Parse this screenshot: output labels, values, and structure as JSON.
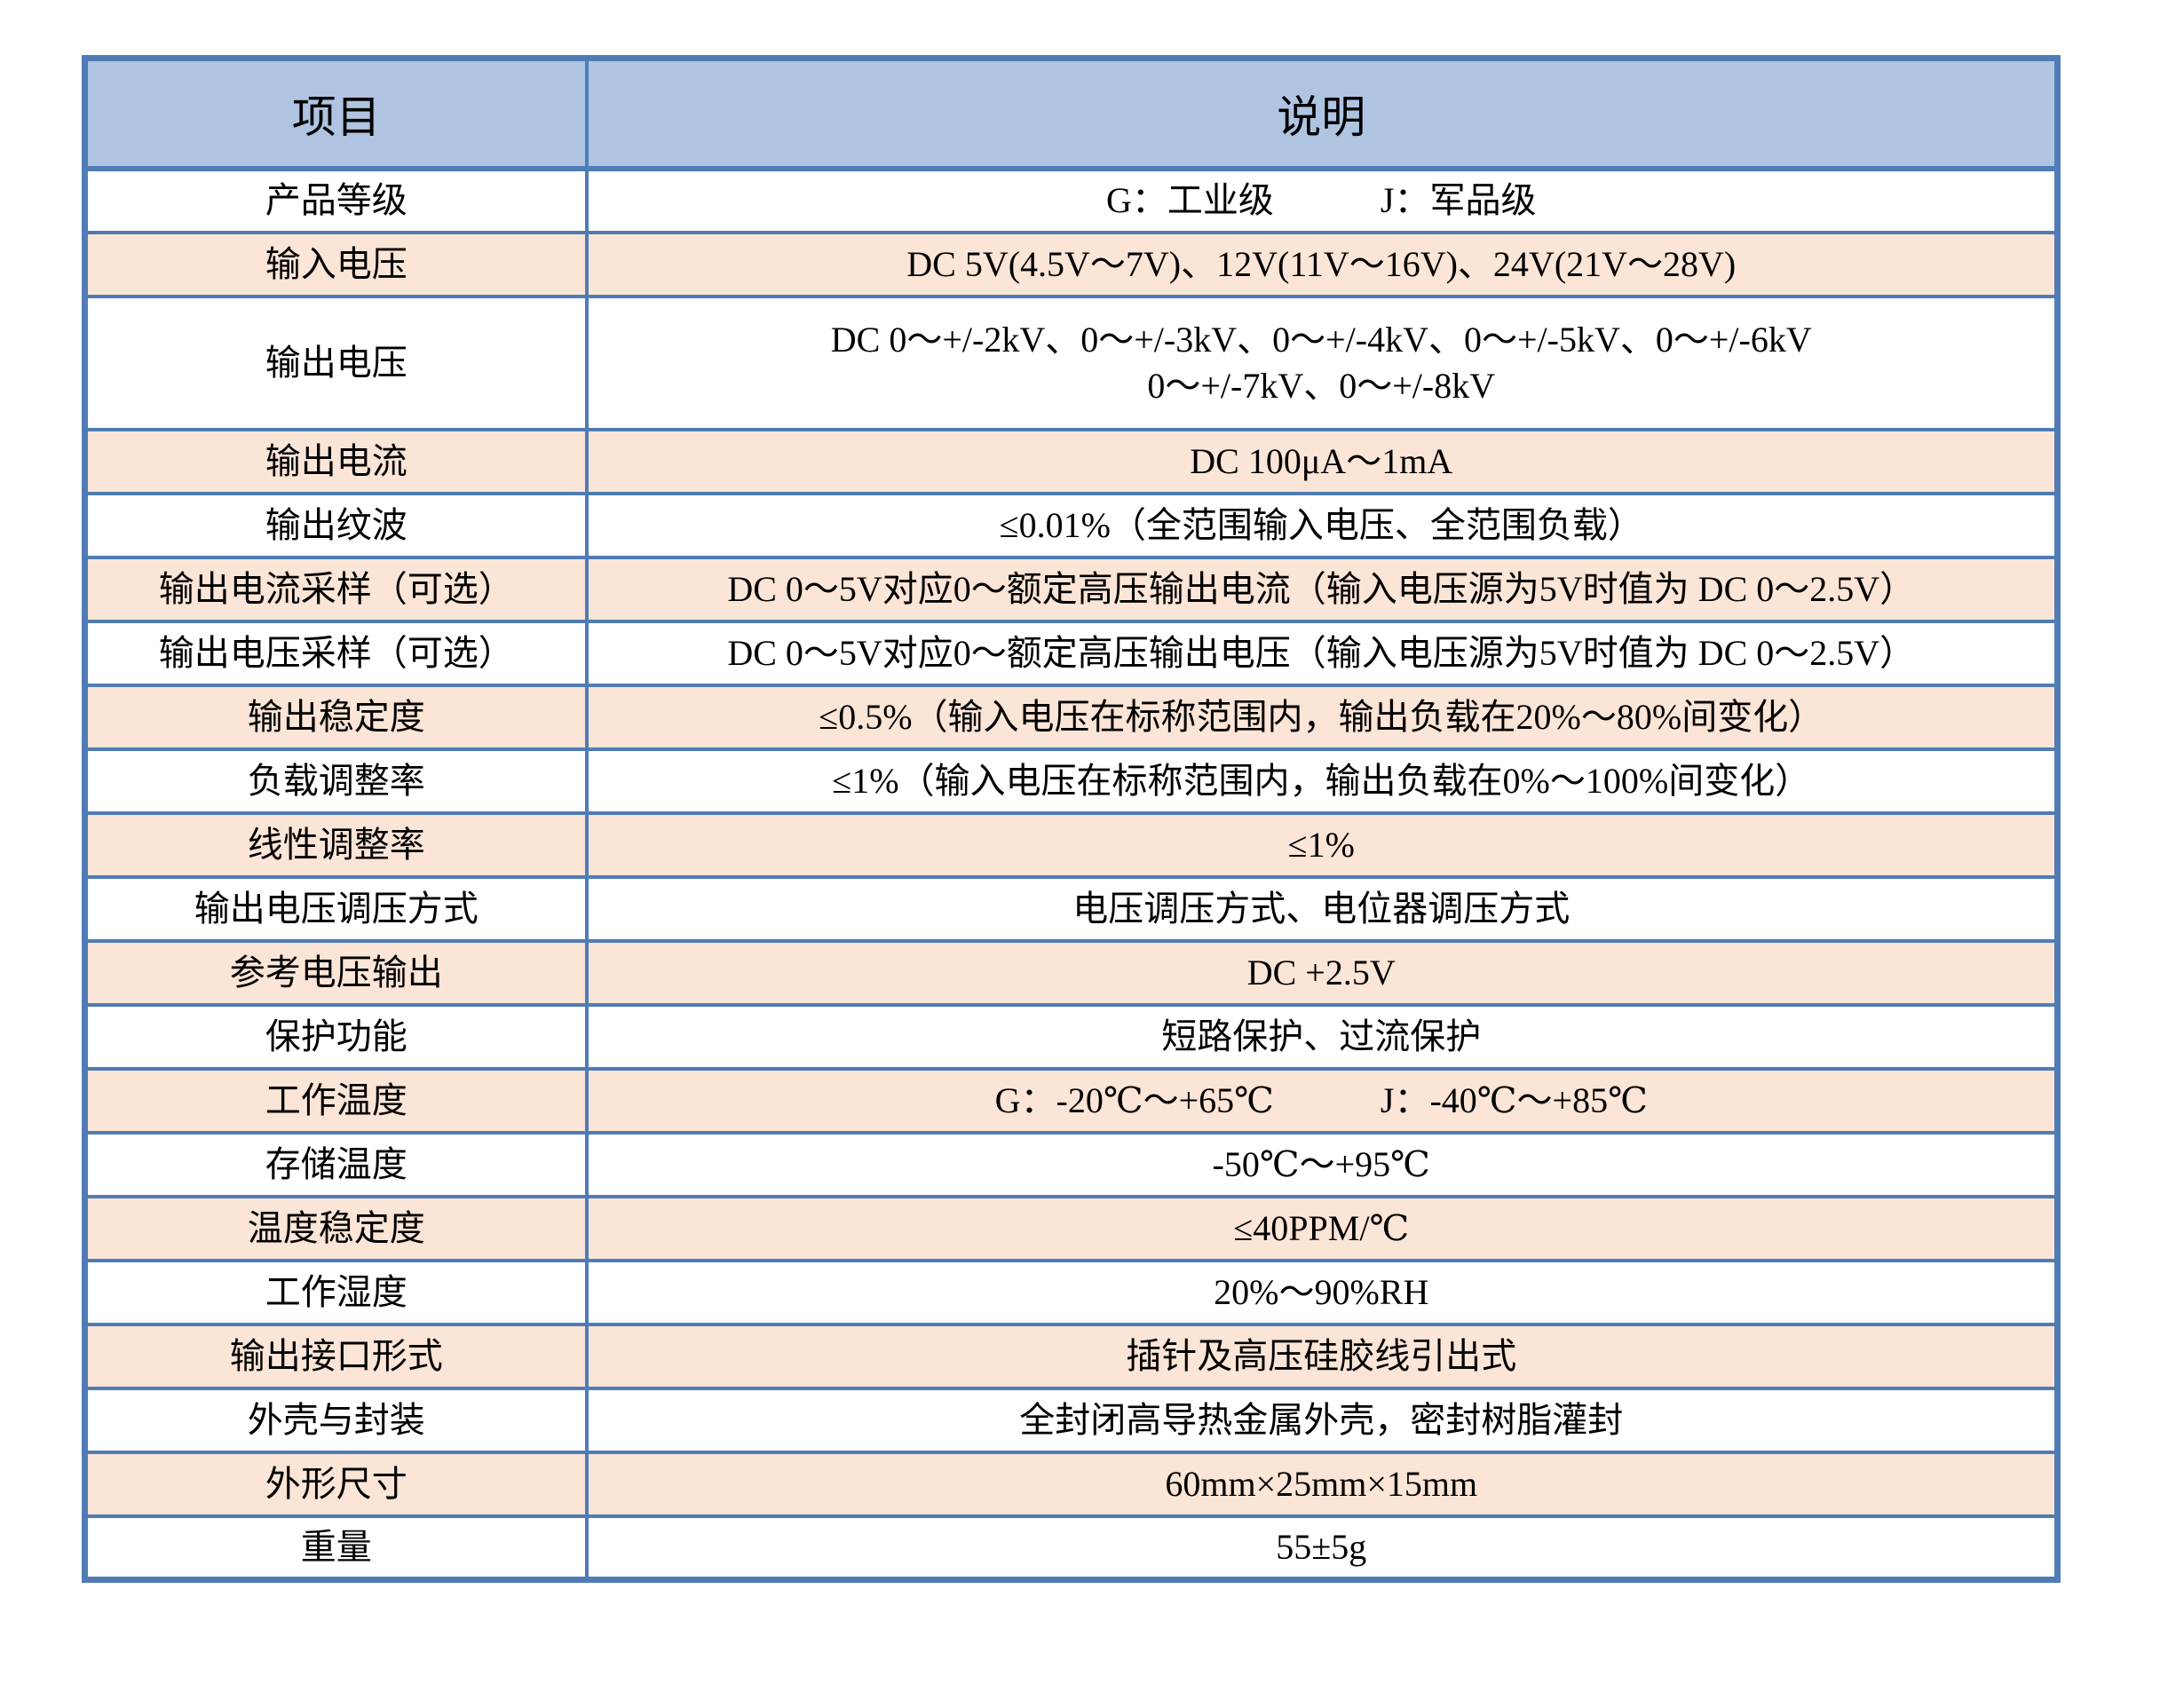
{
  "colors": {
    "border": "#4f7cb5",
    "header_fill": "#afc4e1",
    "band_fill": "#fbe5d6",
    "text": "#000000"
  },
  "table": {
    "headers": {
      "item": "项目",
      "description": "说明"
    },
    "rows": [
      {
        "label": "产品等级",
        "value": "G：工业级　　　J：军品级"
      },
      {
        "label": "输入电压",
        "value": "DC 5V(4.5V～7V)、12V(11V～16V)、24V(21V～28V)"
      },
      {
        "label": "输出电压",
        "value": "DC 0～+/-2kV、0～+/-3kV、0～+/-4kV、0～+/-5kV、0～+/-6kV",
        "value2": "0～+/-7kV、0～+/-8kV"
      },
      {
        "label": "输出电流",
        "value": "DC 100μA～1mA"
      },
      {
        "label": "输出纹波",
        "value": "≤0.01%（全范围输入电压、全范围负载）"
      },
      {
        "label": "输出电流采样（可选）",
        "value": "DC 0～5V对应0～额定高压输出电流（输入电压源为5V时值为 DC 0～2.5V）"
      },
      {
        "label": "输出电压采样（可选）",
        "value": "DC 0～5V对应0～额定高压输出电压（输入电压源为5V时值为 DC 0～2.5V）"
      },
      {
        "label": "输出稳定度",
        "value": "≤0.5%（输入电压在标称范围内，输出负载在20%～80%间变化）"
      },
      {
        "label": "负载调整率",
        "value": "≤1%（输入电压在标称范围内，输出负载在0%～100%间变化）"
      },
      {
        "label": "线性调整率",
        "value": "≤1%"
      },
      {
        "label": "输出电压调压方式",
        "value": "电压调压方式、电位器调压方式"
      },
      {
        "label": "参考电压输出",
        "value": "DC +2.5V"
      },
      {
        "label": "保护功能",
        "value": "短路保护、过流保护"
      },
      {
        "label": "工作温度",
        "value": "G：-20℃～+65℃　　　J：-40℃～+85℃"
      },
      {
        "label": "存储温度",
        "value": "-50℃～+95℃"
      },
      {
        "label": "温度稳定度",
        "value": "≤40PPM/℃"
      },
      {
        "label": "工作湿度",
        "value": "20%～90%RH"
      },
      {
        "label": "输出接口形式",
        "value": "插针及高压硅胶线引出式"
      },
      {
        "label": "外壳与封装",
        "value": "全封闭高导热金属外壳，密封树脂灌封"
      },
      {
        "label": "外形尺寸",
        "value": "60mm×25mm×15mm"
      },
      {
        "label": "重量",
        "value": "55±5g"
      }
    ]
  }
}
